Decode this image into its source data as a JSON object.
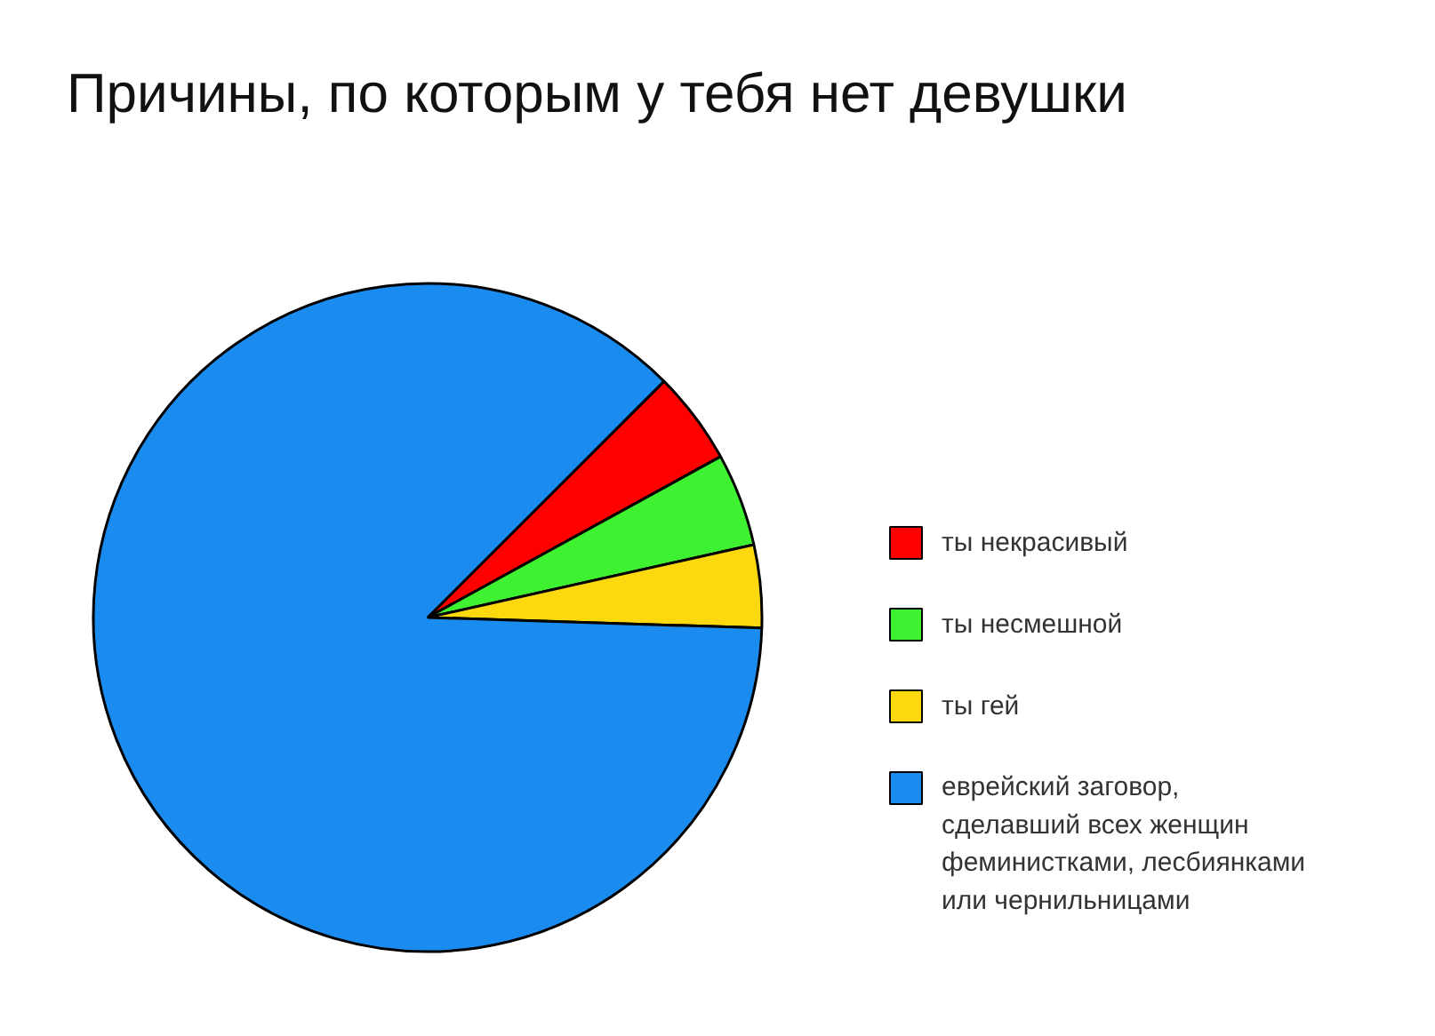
{
  "chart_data": {
    "type": "pie",
    "title": "Причины, по которым у тебя нет девушки",
    "categories": [
      "ты некрасивый",
      "ты несмешной",
      "ты гей",
      "еврейский заговор,\nсделавший всех женщин\nфеминистками, лесбиянками\nили чернильницами"
    ],
    "values": [
      4.5,
      4.5,
      4,
      87
    ],
    "colors": [
      "#ff0000",
      "#3ef231",
      "#fcd80f",
      "#1a8cf0"
    ],
    "legend": "right"
  }
}
